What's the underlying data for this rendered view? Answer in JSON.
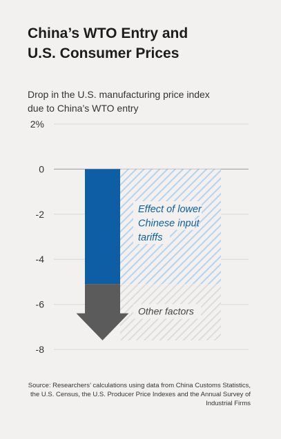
{
  "title_lines": [
    "China’s WTO Entry and",
    "U.S. Consumer Prices"
  ],
  "subtitle_lines": [
    "Drop in the U.S. manufacturing price index",
    "due to China’s WTO entry"
  ],
  "source": "Source: Researchers’ calculations using data from China Customs Statistics, the U.S. Census, the U.S. Producer Price Indexes and the Annual Survey of Industrial Firms",
  "colors": {
    "tariff_effect": "#0e5ea6",
    "other_factors": "#5b5b5b",
    "tariff_hatch": "#b7d3ea",
    "other_hatch": "#dcdcdc",
    "label_text": "#0e5ea6",
    "other_label_text": "#444444",
    "grid": "#d8d8d8",
    "zero_line": "#9a9a9a",
    "background": "#f2f1ef"
  },
  "chart_data": {
    "type": "bar",
    "title": "",
    "xlabel": "",
    "ylabel": "",
    "ylim": [
      -8,
      2
    ],
    "y_ticks": [
      2,
      0,
      -2,
      -4,
      -6,
      -8
    ],
    "y_tick_labels": [
      "2%",
      "0",
      "-2",
      "-4",
      "-6",
      "-8"
    ],
    "grid": true,
    "categories": [
      ""
    ],
    "stacked": true,
    "total": -7.6,
    "series": [
      {
        "name": "Effect of lower Chinese input tariffs",
        "values": [
          -5.1
        ]
      },
      {
        "name": "Other factors",
        "values": [
          -2.5
        ]
      }
    ],
    "annotation_lines": {
      "tariff": [
        "Effect of lower",
        "Chinese input",
        "tariffs"
      ],
      "other": [
        "Other factors"
      ]
    }
  }
}
